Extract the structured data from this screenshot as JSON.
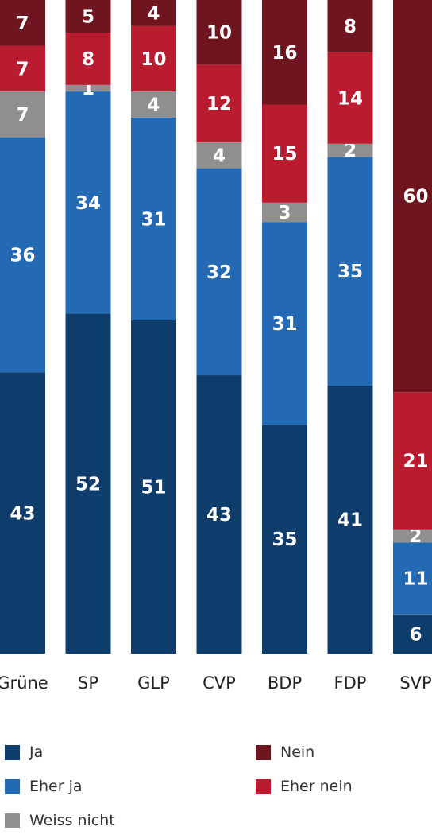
{
  "chart_data": {
    "type": "bar",
    "stacked": true,
    "categories": [
      "Grüne",
      "SP",
      "GLP",
      "CVP",
      "BDP",
      "FDP",
      "SVP"
    ],
    "series": [
      {
        "name": "Ja",
        "color": "#0f3d6b",
        "values": [
          43,
          52,
          51,
          43,
          35,
          41,
          6
        ]
      },
      {
        "name": "Eher ja",
        "color": "#2469b3",
        "values": [
          36,
          34,
          31,
          32,
          31,
          35,
          11
        ]
      },
      {
        "name": "Weiss nicht",
        "color": "#8f8f8f",
        "values": [
          7,
          1,
          4,
          4,
          3,
          2,
          2
        ]
      },
      {
        "name": "Eher nein",
        "color": "#b81c2e",
        "values": [
          7,
          8,
          10,
          12,
          15,
          14,
          21
        ]
      },
      {
        "name": "Nein",
        "color": "#6f1520",
        "values": [
          7,
          5,
          4,
          10,
          16,
          8,
          60
        ]
      }
    ],
    "ylim": [
      0,
      100
    ]
  }
}
